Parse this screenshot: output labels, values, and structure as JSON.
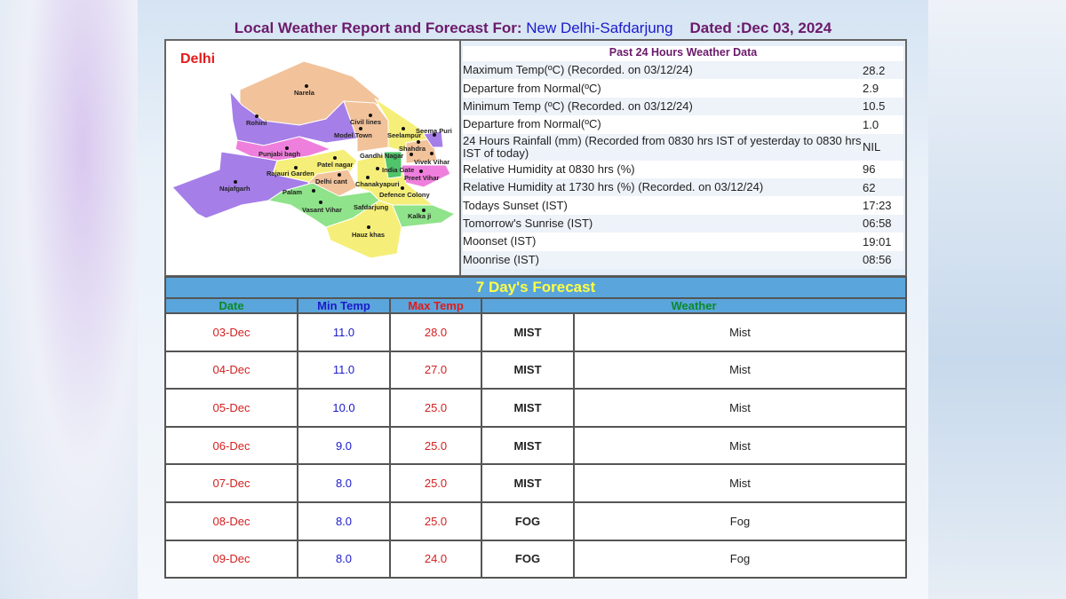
{
  "header": {
    "prefix": "Local Weather Report and Forecast For: ",
    "location": "New Delhi-Safdarjung",
    "dated": "Dated :Dec 03, 2024"
  },
  "map": {
    "title": "Delhi",
    "labels": [
      "Narela",
      "Rohini",
      "Civil lines",
      "Seema Puri",
      "Model Town",
      "Seelampur",
      "Shahdra",
      "Punjabi bagh",
      "Gandhi Nagar",
      "Vivek Vihar",
      "Patel nagar",
      "India Gate",
      "Rajauri Garden",
      "Preet Vihar",
      "Delhi cant",
      "Chanakyapuri",
      "Najafgarh",
      "Palam",
      "Defence Colony",
      "Vasant Vihar",
      "Safdarjung",
      "Kalka ji",
      "Hauz khas"
    ]
  },
  "past24": {
    "heading": "Past 24 Hours Weather Data",
    "rows": [
      {
        "label": "Maximum Temp(ºC) (Recorded. on 03/12/24)",
        "value": "28.2"
      },
      {
        "label": "Departure from Normal(ºC)",
        "value": "2.9"
      },
      {
        "label": "Minimum Temp (ºC) (Recorded. on 03/12/24)",
        "value": "10.5"
      },
      {
        "label": "Departure from Normal(ºC)",
        "value": "1.0"
      },
      {
        "label": "24 Hours Rainfall (mm) (Recorded from 0830 hrs IST of yesterday to 0830 hrs IST of today)",
        "value": "NIL"
      },
      {
        "label": "Relative Humidity at 0830 hrs (%)",
        "value": "96"
      },
      {
        "label": "Relative Humidity at 1730 hrs (%) (Recorded. on 03/12/24)",
        "value": "62"
      },
      {
        "label": "Todays Sunset (IST)",
        "value": "17:23"
      },
      {
        "label": "Tomorrow's Sunrise (IST)",
        "value": "06:58"
      },
      {
        "label": "Moonset (IST)",
        "value": "19:01"
      },
      {
        "label": "Moonrise (IST)",
        "value": "08:56"
      }
    ]
  },
  "forecast": {
    "title": "7 Day's Forecast",
    "columns": [
      "Date",
      "Min Temp",
      "Max Temp",
      "Weather"
    ],
    "rows": [
      {
        "date": "03-Dec",
        "min": "11.0",
        "max": "28.0",
        "code": "MIST",
        "weather": "Mist"
      },
      {
        "date": "04-Dec",
        "min": "11.0",
        "max": "27.0",
        "code": "MIST",
        "weather": "Mist"
      },
      {
        "date": "05-Dec",
        "min": "10.0",
        "max": "25.0",
        "code": "MIST",
        "weather": "Mist"
      },
      {
        "date": "06-Dec",
        "min": "9.0",
        "max": "25.0",
        "code": "MIST",
        "weather": "Mist"
      },
      {
        "date": "07-Dec",
        "min": "8.0",
        "max": "25.0",
        "code": "MIST",
        "weather": "Mist"
      },
      {
        "date": "08-Dec",
        "min": "8.0",
        "max": "25.0",
        "code": "FOG",
        "weather": "Fog"
      },
      {
        "date": "09-Dec",
        "min": "8.0",
        "max": "24.0",
        "code": "FOG",
        "weather": "Fog"
      }
    ]
  },
  "colors": {
    "title": "#6b1a6b",
    "location": "#1a1acc",
    "forecast_header": "#5aa5db",
    "date": "#d42020",
    "min": "#1a1acc",
    "max": "#d42020",
    "col_date": "#0a8a2a",
    "col_weather": "#0a8a2a"
  }
}
